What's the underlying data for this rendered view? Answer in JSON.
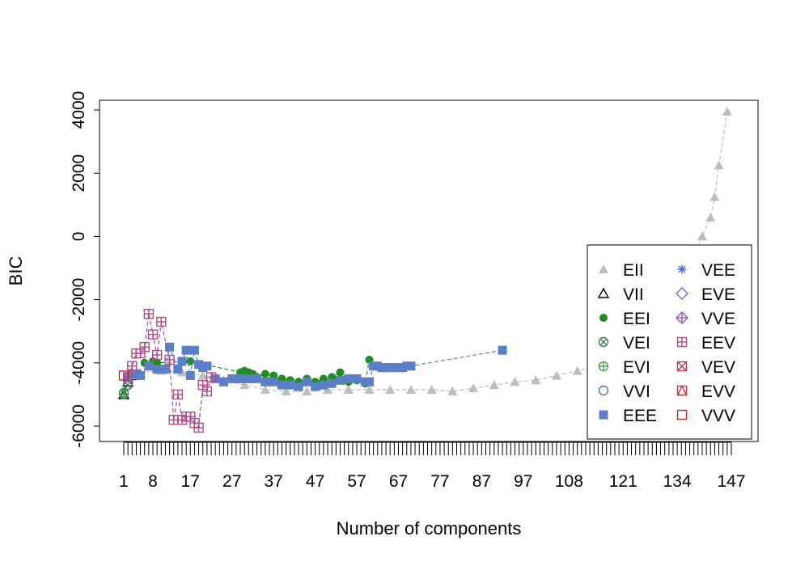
{
  "chart_data": {
    "type": "scatter",
    "title": "",
    "xlabel": "Number of components",
    "ylabel": "BIC",
    "xlim": [
      1,
      147
    ],
    "ylim": [
      -6500,
      4300
    ],
    "x_tick_labels": [
      "1",
      "8",
      "17",
      "27",
      "37",
      "47",
      "57",
      "67",
      "77",
      "87",
      "97",
      "108",
      "121",
      "134",
      "147"
    ],
    "y_tick_labels": [
      "-6000",
      "-4000",
      "-2000",
      "0",
      "2000",
      "4000"
    ],
    "y_tick_values": [
      -6000,
      -4000,
      -2000,
      0,
      2000,
      4000
    ],
    "legend_position": "bottom-right",
    "legend_columns": 2,
    "series": [
      {
        "name": "EII",
        "color": "#BEBEBE",
        "marker": "filled-triangle",
        "connected": true,
        "x": [
          1,
          5,
          10,
          15,
          20,
          25,
          30,
          35,
          40,
          45,
          50,
          55,
          60,
          65,
          70,
          75,
          80,
          85,
          90,
          95,
          100,
          105,
          110,
          115,
          120,
          125,
          130,
          135,
          138,
          140,
          142,
          143,
          144,
          146
        ],
        "y": [
          -5000,
          -4300,
          -4250,
          -4300,
          -4400,
          -4550,
          -4700,
          -4850,
          -4900,
          -4900,
          -4850,
          -4850,
          -4850,
          -4850,
          -4850,
          -4850,
          -4900,
          -4800,
          -4700,
          -4600,
          -4550,
          -4400,
          -4250,
          -4100,
          -3950,
          -3700,
          -3300,
          -1200,
          -700,
          0,
          600,
          1250,
          2250,
          3950
        ]
      },
      {
        "name": "VII",
        "color": "#000000",
        "marker": "open-triangle",
        "connected": true,
        "x": [
          1,
          2,
          3
        ],
        "y": [
          -5000,
          -4600,
          -4400
        ]
      },
      {
        "name": "EEI",
        "color": "#228B22",
        "marker": "filled-circle",
        "connected": true,
        "x": [
          6,
          7,
          8,
          9,
          17,
          29,
          30,
          31,
          32,
          33,
          35,
          37,
          39,
          41,
          43,
          45,
          47,
          49,
          51,
          53,
          55,
          57,
          59,
          60
        ],
        "y": [
          -4000,
          -4100,
          -3950,
          -4000,
          -3950,
          -4300,
          -4250,
          -4300,
          -4350,
          -4450,
          -4350,
          -4400,
          -4500,
          -4550,
          -4600,
          -4500,
          -4600,
          -4500,
          -4450,
          -4300,
          -4600,
          -4550,
          -4650,
          -3900
        ]
      },
      {
        "name": "VEI",
        "color": "#3F7F5F",
        "marker": "circle-x",
        "connected": true,
        "x": [
          1,
          2
        ],
        "y": [
          -4950,
          -4700
        ]
      },
      {
        "name": "EVI",
        "color": "#4AA04A",
        "marker": "circle-plus",
        "connected": false,
        "x": [
          1
        ],
        "y": [
          -4980
        ]
      },
      {
        "name": "VVI",
        "color": "#4D77A8",
        "marker": "open-circle",
        "connected": false,
        "x": [],
        "y": []
      },
      {
        "name": "EEE",
        "color": "#5B7FC7",
        "marker": "filled-square",
        "connected": true,
        "x": [
          2,
          3,
          4,
          5,
          7,
          9,
          11,
          12,
          14,
          15,
          16,
          17,
          18,
          19,
          20,
          21,
          23,
          25,
          27,
          29,
          31,
          33,
          35,
          37,
          39,
          41,
          43,
          45,
          47,
          49,
          51,
          53,
          55,
          57,
          59,
          60,
          61,
          62,
          63,
          64,
          65,
          66,
          67,
          68,
          69,
          70,
          92
        ],
        "y": [
          -4450,
          -4350,
          -4350,
          -4400,
          -4100,
          -4200,
          -4200,
          -3500,
          -4200,
          -3950,
          -3600,
          -4400,
          -3600,
          -4050,
          -4150,
          -4100,
          -4500,
          -4600,
          -4500,
          -4500,
          -4500,
          -4500,
          -4600,
          -4600,
          -4700,
          -4700,
          -4750,
          -4600,
          -4750,
          -4700,
          -4650,
          -4550,
          -4500,
          -4500,
          -4600,
          -4600,
          -4100,
          -4100,
          -4150,
          -4150,
          -4150,
          -4150,
          -4150,
          -4150,
          -4100,
          -4100,
          -3600
        ]
      },
      {
        "name": "VEE",
        "color": "#4169E1",
        "marker": "asterisk",
        "connected": false,
        "x": [],
        "y": []
      },
      {
        "name": "EVE",
        "color": "#7B68EE",
        "marker": "open-diamond",
        "connected": false,
        "x": [],
        "y": []
      },
      {
        "name": "VVE",
        "color": "#9B59B6",
        "marker": "diamond-plus",
        "connected": false,
        "x": [],
        "y": []
      },
      {
        "name": "EEV",
        "color": "#B04C8C",
        "marker": "square-plus",
        "connected": true,
        "x": [
          2,
          3,
          4,
          5,
          6,
          7,
          8,
          9,
          10,
          12,
          13,
          14,
          15,
          16,
          17,
          18,
          19,
          20,
          21,
          22
        ],
        "y": [
          -4450,
          -4100,
          -3700,
          -3700,
          -3500,
          -2450,
          -3100,
          -3750,
          -2700,
          -3900,
          -5800,
          -5000,
          -5800,
          -5700,
          -5700,
          -5900,
          -6050,
          -4700,
          -4900,
          -4450
        ]
      },
      {
        "name": "VEV",
        "color": "#B0384C",
        "marker": "square-x",
        "connected": false,
        "x": [],
        "y": []
      },
      {
        "name": "EVV",
        "color": "#CC3333",
        "marker": "square-triangle",
        "connected": false,
        "x": [],
        "y": []
      },
      {
        "name": "VVV",
        "color": "#CD2626",
        "marker": "open-square",
        "connected": false,
        "x": [
          1
        ],
        "y": [
          -4400
        ]
      }
    ]
  }
}
